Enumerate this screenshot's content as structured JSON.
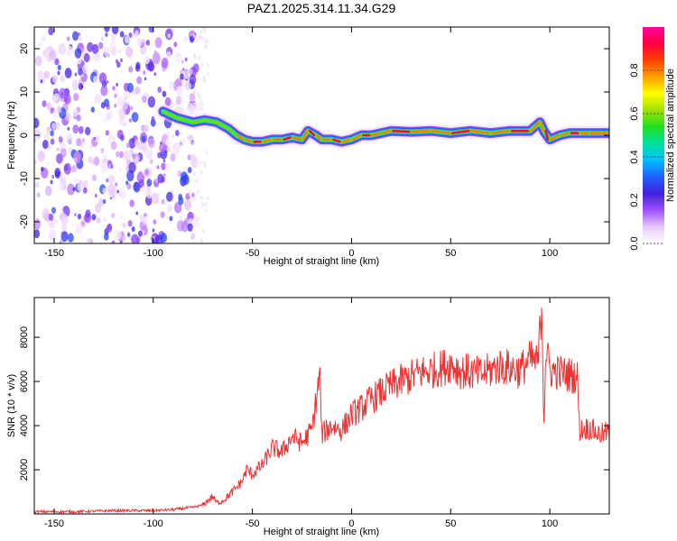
{
  "title": "PAZ1.2025.314.11.34.G29",
  "chart_data": [
    {
      "type": "heatmap",
      "xlabel": "Height of straight line (km)",
      "ylabel": "Frequency (Hz)",
      "xlim": [
        -160,
        130
      ],
      "ylim": [
        -25,
        25
      ],
      "xticks": [
        -150,
        -100,
        -50,
        0,
        50,
        100
      ],
      "yticks": [
        -20,
        -10,
        0,
        10,
        20
      ],
      "colorbar": {
        "label": "Normalized spectral amplitude",
        "range": [
          0,
          1
        ],
        "ticks": [
          "0.0",
          "0.2",
          "0.4",
          "0.6",
          "0.8"
        ],
        "colors": [
          "#ffffff",
          "#e8c8f8",
          "#a050ff",
          "#4020e0",
          "#2060ff",
          "#00c0ff",
          "#00e0a0",
          "#20e020",
          "#a0e000",
          "#ffff00",
          "#ffa000",
          "#ff4000",
          "#ff0040",
          "#ff00a0"
        ]
      },
      "ridge": {
        "x": [
          -95,
          -88,
          -80,
          -74,
          -68,
          -62,
          -58,
          -54,
          -50,
          -45,
          -40,
          -35,
          -30,
          -25,
          -22,
          -18,
          -15,
          -10,
          -5,
          0,
          5,
          10,
          15,
          20,
          30,
          40,
          50,
          60,
          70,
          80,
          90,
          95,
          97,
          100,
          105,
          110,
          115,
          120,
          130
        ],
        "y": [
          5.5,
          4,
          3,
          3.5,
          3,
          1.5,
          0,
          -1,
          -1.5,
          -1.5,
          -1,
          -1,
          -0.5,
          -1,
          1,
          0,
          -1,
          -1,
          -1.5,
          -1,
          0,
          0,
          0.5,
          1,
          0.8,
          1,
          0.5,
          1,
          0.5,
          1,
          1,
          3,
          1,
          -1,
          0,
          0.5,
          0.5,
          0.5,
          0.5
        ]
      }
    },
    {
      "type": "line",
      "xlabel": "Height of straight line (km)",
      "ylabel": "SNR (10 * v/v)",
      "xlim": [
        -160,
        130
      ],
      "ylim": [
        0,
        9800
      ],
      "xticks": [
        -150,
        -100,
        -50,
        0,
        50,
        100
      ],
      "yticks": [
        2000,
        4000,
        6000,
        8000
      ],
      "series": [
        {
          "name": "SNR",
          "color": "#ee3333",
          "x": [
            -160,
            -140,
            -120,
            -100,
            -90,
            -80,
            -75,
            -70,
            -68,
            -65,
            -60,
            -55,
            -53,
            -50,
            -45,
            -40,
            -35,
            -30,
            -25,
            -20,
            -16,
            -15,
            -10,
            -5,
            0,
            5,
            10,
            15,
            20,
            25,
            30,
            35,
            40,
            45,
            50,
            55,
            60,
            65,
            70,
            75,
            80,
            85,
            90,
            94,
            96,
            97,
            98,
            100,
            105,
            110,
            114,
            115,
            120,
            125,
            130
          ],
          "y": [
            100,
            100,
            150,
            150,
            200,
            300,
            400,
            800,
            500,
            600,
            1000,
            1500,
            2000,
            1800,
            2200,
            3000,
            2800,
            3500,
            3200,
            3800,
            6300,
            3600,
            4000,
            3800,
            4500,
            4800,
            5200,
            5500,
            5800,
            6000,
            6200,
            6400,
            6500,
            6600,
            6800,
            6500,
            6400,
            6300,
            6500,
            6700,
            6600,
            6500,
            7000,
            6800,
            9700,
            4000,
            7500,
            6500,
            6400,
            6300,
            6200,
            3800,
            3900,
            3600,
            3700
          ]
        }
      ]
    }
  ]
}
